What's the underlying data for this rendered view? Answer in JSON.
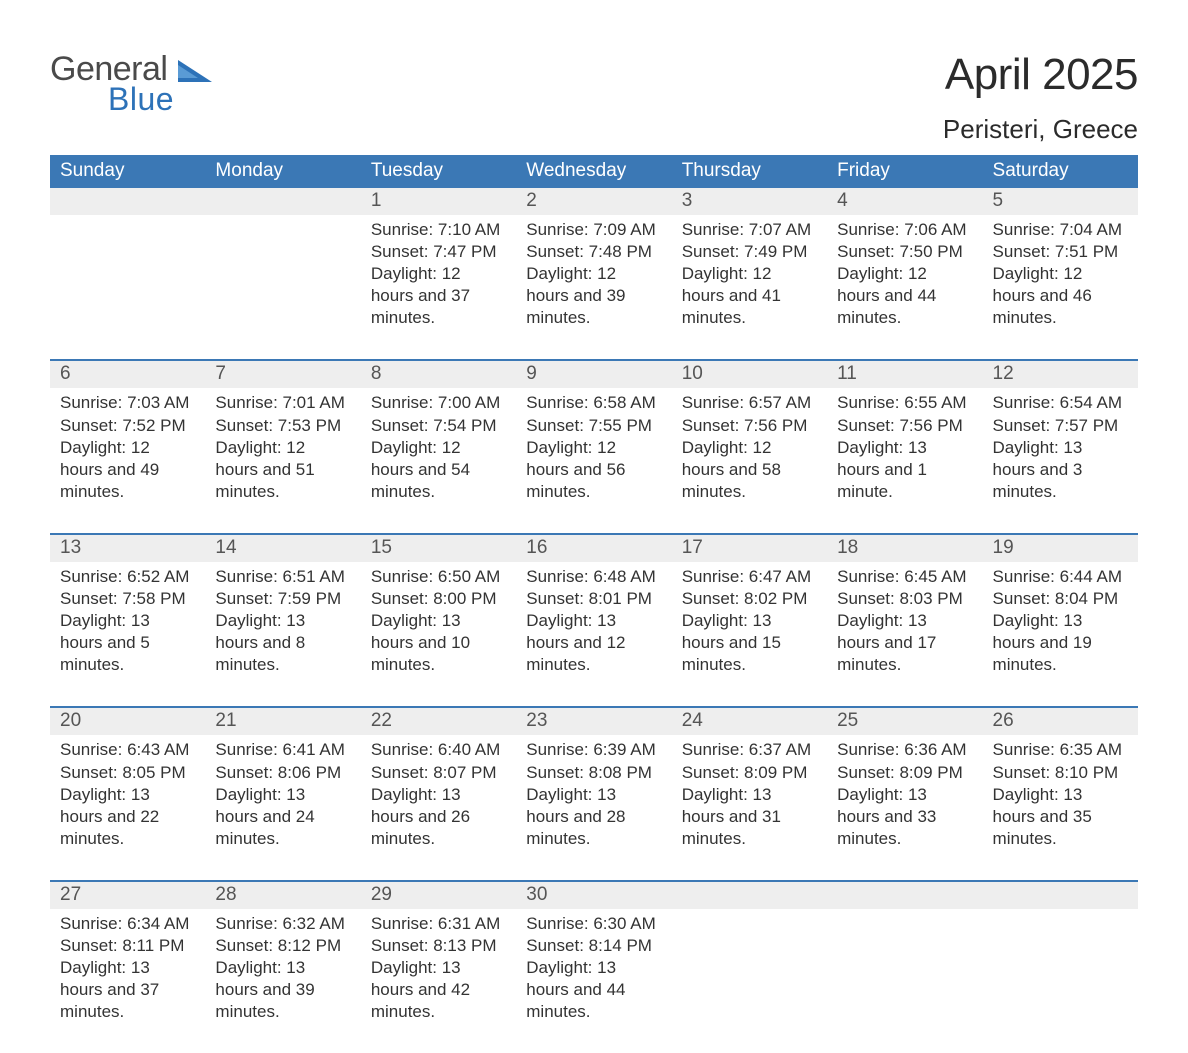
{
  "logo": {
    "word1": "General",
    "word2": "Blue",
    "brand_color": "#2d72b8",
    "text_color": "#4a4a4a"
  },
  "title": "April 2025",
  "location": "Peristeri, Greece",
  "colors": {
    "header_bg": "#3b78b5",
    "header_text": "#ffffff",
    "daynum_bg": "#eeeeee",
    "daynum_text": "#555555",
    "body_text": "#333333",
    "week_border": "#3b78b5",
    "page_bg": "#ffffff"
  },
  "typography": {
    "title_fontsize": 44,
    "location_fontsize": 26,
    "dow_fontsize": 19,
    "daynum_fontsize": 19,
    "body_fontsize": 17
  },
  "days_of_week": [
    "Sunday",
    "Monday",
    "Tuesday",
    "Wednesday",
    "Thursday",
    "Friday",
    "Saturday"
  ],
  "labels": {
    "sunrise": "Sunrise:",
    "sunset": "Sunset:",
    "daylight": "Daylight:"
  },
  "weeks": [
    [
      null,
      null,
      {
        "n": "1",
        "sr": "7:10 AM",
        "ss": "7:47 PM",
        "dl": "12 hours and 37 minutes."
      },
      {
        "n": "2",
        "sr": "7:09 AM",
        "ss": "7:48 PM",
        "dl": "12 hours and 39 minutes."
      },
      {
        "n": "3",
        "sr": "7:07 AM",
        "ss": "7:49 PM",
        "dl": "12 hours and 41 minutes."
      },
      {
        "n": "4",
        "sr": "7:06 AM",
        "ss": "7:50 PM",
        "dl": "12 hours and 44 minutes."
      },
      {
        "n": "5",
        "sr": "7:04 AM",
        "ss": "7:51 PM",
        "dl": "12 hours and 46 minutes."
      }
    ],
    [
      {
        "n": "6",
        "sr": "7:03 AM",
        "ss": "7:52 PM",
        "dl": "12 hours and 49 minutes."
      },
      {
        "n": "7",
        "sr": "7:01 AM",
        "ss": "7:53 PM",
        "dl": "12 hours and 51 minutes."
      },
      {
        "n": "8",
        "sr": "7:00 AM",
        "ss": "7:54 PM",
        "dl": "12 hours and 54 minutes."
      },
      {
        "n": "9",
        "sr": "6:58 AM",
        "ss": "7:55 PM",
        "dl": "12 hours and 56 minutes."
      },
      {
        "n": "10",
        "sr": "6:57 AM",
        "ss": "7:56 PM",
        "dl": "12 hours and 58 minutes."
      },
      {
        "n": "11",
        "sr": "6:55 AM",
        "ss": "7:56 PM",
        "dl": "13 hours and 1 minute."
      },
      {
        "n": "12",
        "sr": "6:54 AM",
        "ss": "7:57 PM",
        "dl": "13 hours and 3 minutes."
      }
    ],
    [
      {
        "n": "13",
        "sr": "6:52 AM",
        "ss": "7:58 PM",
        "dl": "13 hours and 5 minutes."
      },
      {
        "n": "14",
        "sr": "6:51 AM",
        "ss": "7:59 PM",
        "dl": "13 hours and 8 minutes."
      },
      {
        "n": "15",
        "sr": "6:50 AM",
        "ss": "8:00 PM",
        "dl": "13 hours and 10 minutes."
      },
      {
        "n": "16",
        "sr": "6:48 AM",
        "ss": "8:01 PM",
        "dl": "13 hours and 12 minutes."
      },
      {
        "n": "17",
        "sr": "6:47 AM",
        "ss": "8:02 PM",
        "dl": "13 hours and 15 minutes."
      },
      {
        "n": "18",
        "sr": "6:45 AM",
        "ss": "8:03 PM",
        "dl": "13 hours and 17 minutes."
      },
      {
        "n": "19",
        "sr": "6:44 AM",
        "ss": "8:04 PM",
        "dl": "13 hours and 19 minutes."
      }
    ],
    [
      {
        "n": "20",
        "sr": "6:43 AM",
        "ss": "8:05 PM",
        "dl": "13 hours and 22 minutes."
      },
      {
        "n": "21",
        "sr": "6:41 AM",
        "ss": "8:06 PM",
        "dl": "13 hours and 24 minutes."
      },
      {
        "n": "22",
        "sr": "6:40 AM",
        "ss": "8:07 PM",
        "dl": "13 hours and 26 minutes."
      },
      {
        "n": "23",
        "sr": "6:39 AM",
        "ss": "8:08 PM",
        "dl": "13 hours and 28 minutes."
      },
      {
        "n": "24",
        "sr": "6:37 AM",
        "ss": "8:09 PM",
        "dl": "13 hours and 31 minutes."
      },
      {
        "n": "25",
        "sr": "6:36 AM",
        "ss": "8:09 PM",
        "dl": "13 hours and 33 minutes."
      },
      {
        "n": "26",
        "sr": "6:35 AM",
        "ss": "8:10 PM",
        "dl": "13 hours and 35 minutes."
      }
    ],
    [
      {
        "n": "27",
        "sr": "6:34 AM",
        "ss": "8:11 PM",
        "dl": "13 hours and 37 minutes."
      },
      {
        "n": "28",
        "sr": "6:32 AM",
        "ss": "8:12 PM",
        "dl": "13 hours and 39 minutes."
      },
      {
        "n": "29",
        "sr": "6:31 AM",
        "ss": "8:13 PM",
        "dl": "13 hours and 42 minutes."
      },
      {
        "n": "30",
        "sr": "6:30 AM",
        "ss": "8:14 PM",
        "dl": "13 hours and 44 minutes."
      },
      null,
      null,
      null
    ]
  ]
}
